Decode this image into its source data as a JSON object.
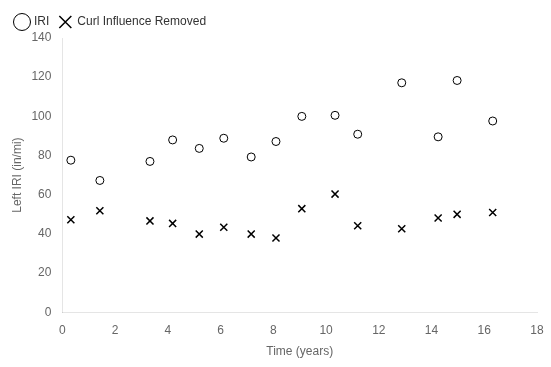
{
  "chart_data": {
    "type": "scatter",
    "xlabel": "Time (years)",
    "ylabel": "Left IRI (in/mi)",
    "xlim": [
      0,
      18
    ],
    "ylim": [
      0,
      140
    ],
    "xticks": [
      0,
      2,
      4,
      6,
      8,
      10,
      12,
      14,
      16,
      18
    ],
    "yticks": [
      0,
      20,
      40,
      60,
      80,
      100,
      120,
      140
    ],
    "grid": false,
    "legend": "upper left",
    "series": [
      {
        "name": "IRI",
        "color": "black",
        "marker": "circle",
        "x": [
          0.32,
          1.42,
          3.32,
          4.18,
          5.19,
          6.12,
          7.16,
          8.1,
          9.08,
          10.34,
          11.2,
          12.87,
          14.25,
          14.97,
          16.32
        ],
        "values": [
          77.61,
          67.26,
          76.98,
          87.96,
          83.63,
          88.82,
          79.25,
          87.15,
          99.98,
          100.52,
          90.88,
          117.12,
          89.54,
          118.31,
          97.63
        ]
      },
      {
        "name": "Curl Influence Removed",
        "color": "black",
        "marker": "x",
        "x": [
          0.32,
          1.42,
          3.32,
          4.18,
          5.19,
          6.12,
          7.16,
          8.1,
          9.08,
          10.34,
          11.2,
          12.87,
          14.25,
          14.97,
          16.32
        ],
        "values": [
          47.2,
          51.8,
          46.6,
          45.32,
          39.89,
          43.36,
          39.87,
          37.89,
          52.87,
          60.31,
          44.15,
          42.61,
          48.08,
          49.95,
          50.88
        ]
      }
    ]
  }
}
